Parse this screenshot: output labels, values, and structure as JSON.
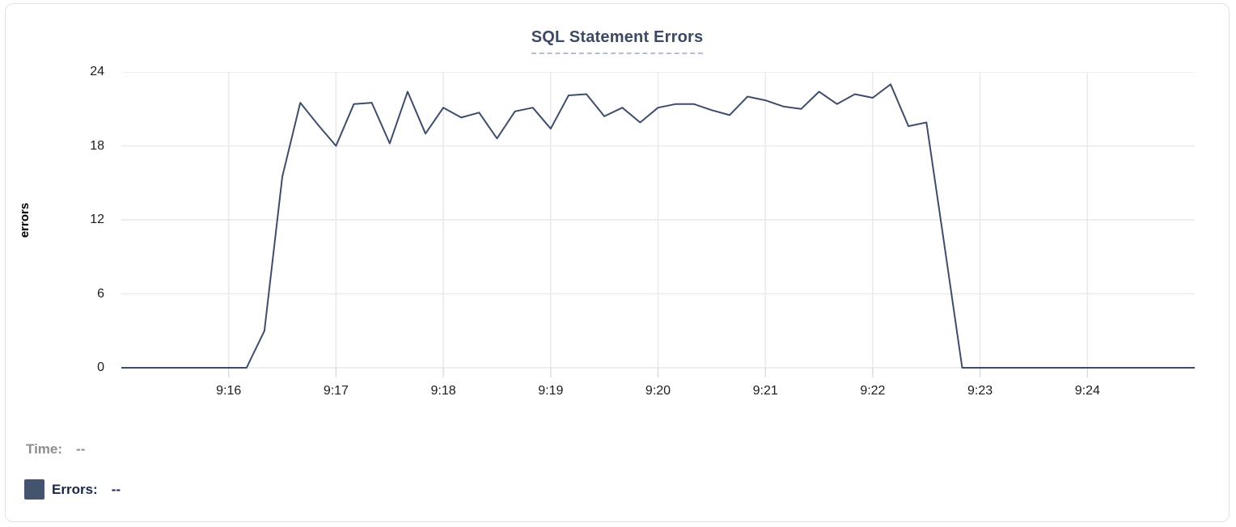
{
  "chart_data": {
    "type": "line",
    "title": "SQL Statement Errors",
    "xlabel": "",
    "ylabel": "errors",
    "x_domain": [
      "9:15:00",
      "9:25:00"
    ],
    "x_ticks": [
      "9:16",
      "9:17",
      "9:18",
      "9:19",
      "9:20",
      "9:21",
      "9:22",
      "9:23",
      "9:24"
    ],
    "y_ticks": [
      0,
      6,
      12,
      18,
      24
    ],
    "ylim": [
      0,
      24
    ],
    "grid": true,
    "legend_position": "bottom-left",
    "sample_interval_seconds": 10,
    "series": [
      {
        "name": "Errors",
        "color": "#3e4d6b",
        "points": [
          [
            "9:15:00",
            0
          ],
          [
            "9:15:10",
            0
          ],
          [
            "9:15:20",
            0
          ],
          [
            "9:15:30",
            0
          ],
          [
            "9:15:40",
            0
          ],
          [
            "9:15:50",
            0
          ],
          [
            "9:16:00",
            0
          ],
          [
            "9:16:10",
            0
          ],
          [
            "9:16:20",
            3
          ],
          [
            "9:16:30",
            15.5
          ],
          [
            "9:16:40",
            21.5
          ],
          [
            "9:16:50",
            19.7
          ],
          [
            "9:17:00",
            18
          ],
          [
            "9:17:10",
            21.4
          ],
          [
            "9:17:20",
            21.5
          ],
          [
            "9:17:30",
            18.2
          ],
          [
            "9:17:40",
            22.4
          ],
          [
            "9:17:50",
            19
          ],
          [
            "9:18:00",
            21.1
          ],
          [
            "9:18:10",
            20.3
          ],
          [
            "9:18:20",
            20.7
          ],
          [
            "9:18:30",
            18.6
          ],
          [
            "9:18:40",
            20.8
          ],
          [
            "9:18:50",
            21.1
          ],
          [
            "9:19:00",
            19.4
          ],
          [
            "9:19:10",
            22.1
          ],
          [
            "9:19:20",
            22.2
          ],
          [
            "9:19:30",
            20.4
          ],
          [
            "9:19:40",
            21.1
          ],
          [
            "9:19:50",
            19.9
          ],
          [
            "9:20:00",
            21.1
          ],
          [
            "9:20:10",
            21.4
          ],
          [
            "9:20:20",
            21.4
          ],
          [
            "9:20:30",
            20.9
          ],
          [
            "9:20:40",
            20.5
          ],
          [
            "9:20:50",
            22
          ],
          [
            "9:21:00",
            21.7
          ],
          [
            "9:21:10",
            21.2
          ],
          [
            "9:21:20",
            21
          ],
          [
            "9:21:30",
            22.4
          ],
          [
            "9:21:40",
            21.4
          ],
          [
            "9:21:50",
            22.2
          ],
          [
            "9:22:00",
            21.9
          ],
          [
            "9:22:10",
            23
          ],
          [
            "9:22:20",
            19.6
          ],
          [
            "9:22:30",
            19.9
          ],
          [
            "9:22:40",
            10
          ],
          [
            "9:22:50",
            0
          ],
          [
            "9:23:00",
            0
          ],
          [
            "9:23:10",
            0
          ],
          [
            "9:23:20",
            0
          ],
          [
            "9:23:30",
            0
          ],
          [
            "9:23:40",
            0
          ],
          [
            "9:23:50",
            0
          ],
          [
            "9:24:00",
            0
          ],
          [
            "9:24:10",
            0
          ],
          [
            "9:24:20",
            0
          ],
          [
            "9:24:30",
            0
          ],
          [
            "9:24:40",
            0
          ],
          [
            "9:24:50",
            0
          ],
          [
            "9:25:00",
            0
          ]
        ]
      }
    ]
  },
  "readout": {
    "time_label": "Time:",
    "time_value": "--",
    "errors_label": "Errors:",
    "errors_value": "--",
    "swatch_color": "#44536e"
  },
  "colors": {
    "accent": "#3e4d6b",
    "title": "#3c4a66",
    "grid": "#e9e9e9",
    "tick": "#dcdcdc",
    "muted_text": "#8d8d8d",
    "legend_text": "#1a2747"
  }
}
